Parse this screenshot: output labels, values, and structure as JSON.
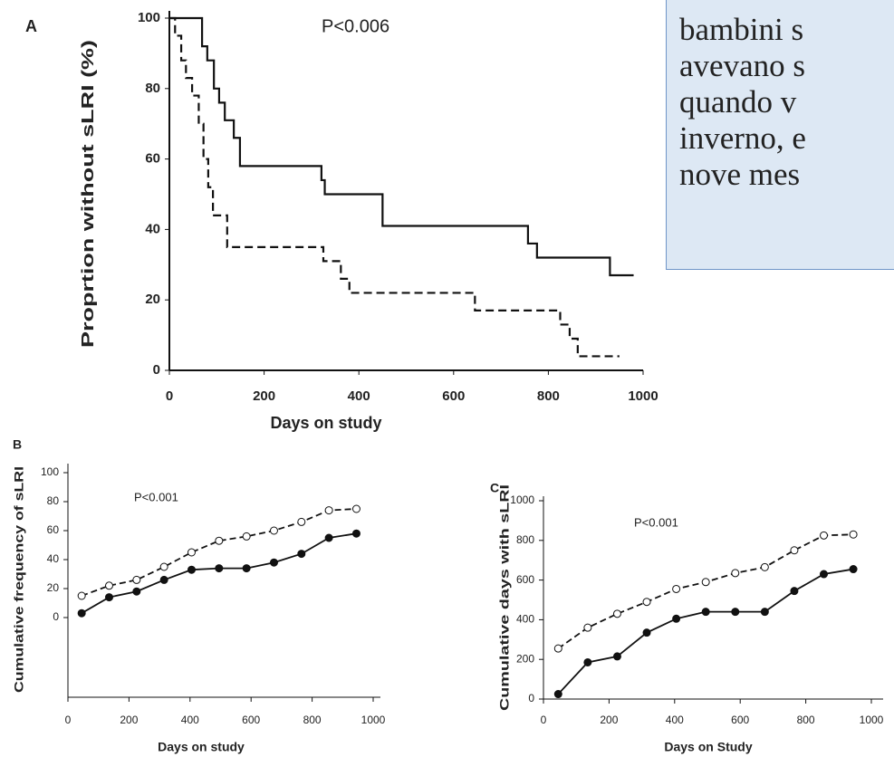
{
  "chart_data": [
    {
      "type": "line",
      "panel_label": "A",
      "annotation": "P<0.006",
      "xlabel": "Days on study",
      "ylabel": "Proprtion without sLRI (%)",
      "xlim": [
        0,
        1000
      ],
      "ylim": [
        0,
        100
      ],
      "xticks": [
        0,
        200,
        400,
        600,
        800,
        1000
      ],
      "yticks": [
        0,
        20,
        40,
        60,
        80,
        100
      ],
      "step": true,
      "series": [
        {
          "x": [
            0,
            69,
            80,
            94,
            105,
            117,
            136,
            149,
            321,
            328,
            450,
            757,
            776,
            930,
            980
          ],
          "values": [
            100,
            92,
            88,
            80,
            76,
            71,
            66,
            58,
            54,
            50,
            41,
            36,
            32,
            27,
            27
          ],
          "color": "#111",
          "dash": false
        },
        {
          "x": [
            0,
            12,
            25,
            35,
            48,
            62,
            72,
            82,
            92,
            122,
            325,
            362,
            380,
            645,
            825,
            845,
            862,
            950
          ],
          "values": [
            100,
            95,
            88,
            83,
            78,
            70,
            60,
            52,
            44,
            35,
            31,
            26,
            22,
            17,
            13,
            9,
            4,
            4
          ],
          "color": "#111",
          "dash": true
        }
      ]
    },
    {
      "type": "line",
      "panel_label": "B",
      "annotation": "P<0.001",
      "xlabel": "Days on study",
      "ylabel": "Cumulative frequency of sLRI",
      "xlim": [
        0,
        1000
      ],
      "ylim": [
        -55,
        100
      ],
      "xticks": [
        0,
        200,
        400,
        600,
        800,
        1000
      ],
      "yticks": [
        0,
        20,
        40,
        60,
        80,
        100
      ],
      "x": [
        45,
        135,
        225,
        315,
        405,
        495,
        585,
        675,
        765,
        855,
        945
      ],
      "series": [
        {
          "values": [
            15,
            22,
            26,
            35,
            45,
            53,
            56,
            60,
            66,
            74,
            75
          ],
          "color": "#111",
          "dash": true,
          "marker": "open"
        },
        {
          "values": [
            3,
            14,
            18,
            26,
            33,
            34,
            34,
            38,
            44,
            55,
            58
          ],
          "color": "#111",
          "dash": false,
          "marker": "filled"
        }
      ]
    },
    {
      "type": "line",
      "panel_label": "C",
      "annotation": "P<0.001",
      "xlabel": "Days on Study",
      "ylabel": "Cumulative days with sLRI",
      "xlim": [
        0,
        1000
      ],
      "ylim": [
        0,
        1000
      ],
      "xticks": [
        0,
        200,
        400,
        600,
        800,
        1000
      ],
      "yticks": [
        0,
        200,
        400,
        600,
        800,
        1000
      ],
      "x": [
        45,
        135,
        225,
        315,
        405,
        495,
        585,
        675,
        765,
        855,
        945
      ],
      "series": [
        {
          "values": [
            255,
            360,
            430,
            490,
            555,
            590,
            635,
            665,
            750,
            825,
            830
          ],
          "color": "#111",
          "dash": true,
          "marker": "open"
        },
        {
          "values": [
            25,
            185,
            215,
            335,
            405,
            440,
            440,
            440,
            545,
            630,
            655
          ],
          "color": "#111",
          "dash": false,
          "marker": "filled"
        }
      ]
    }
  ],
  "text_box": {
    "lines": [
      "bambini s",
      "avevano  s",
      "quando v",
      "inverno, e",
      "nove mes"
    ]
  }
}
